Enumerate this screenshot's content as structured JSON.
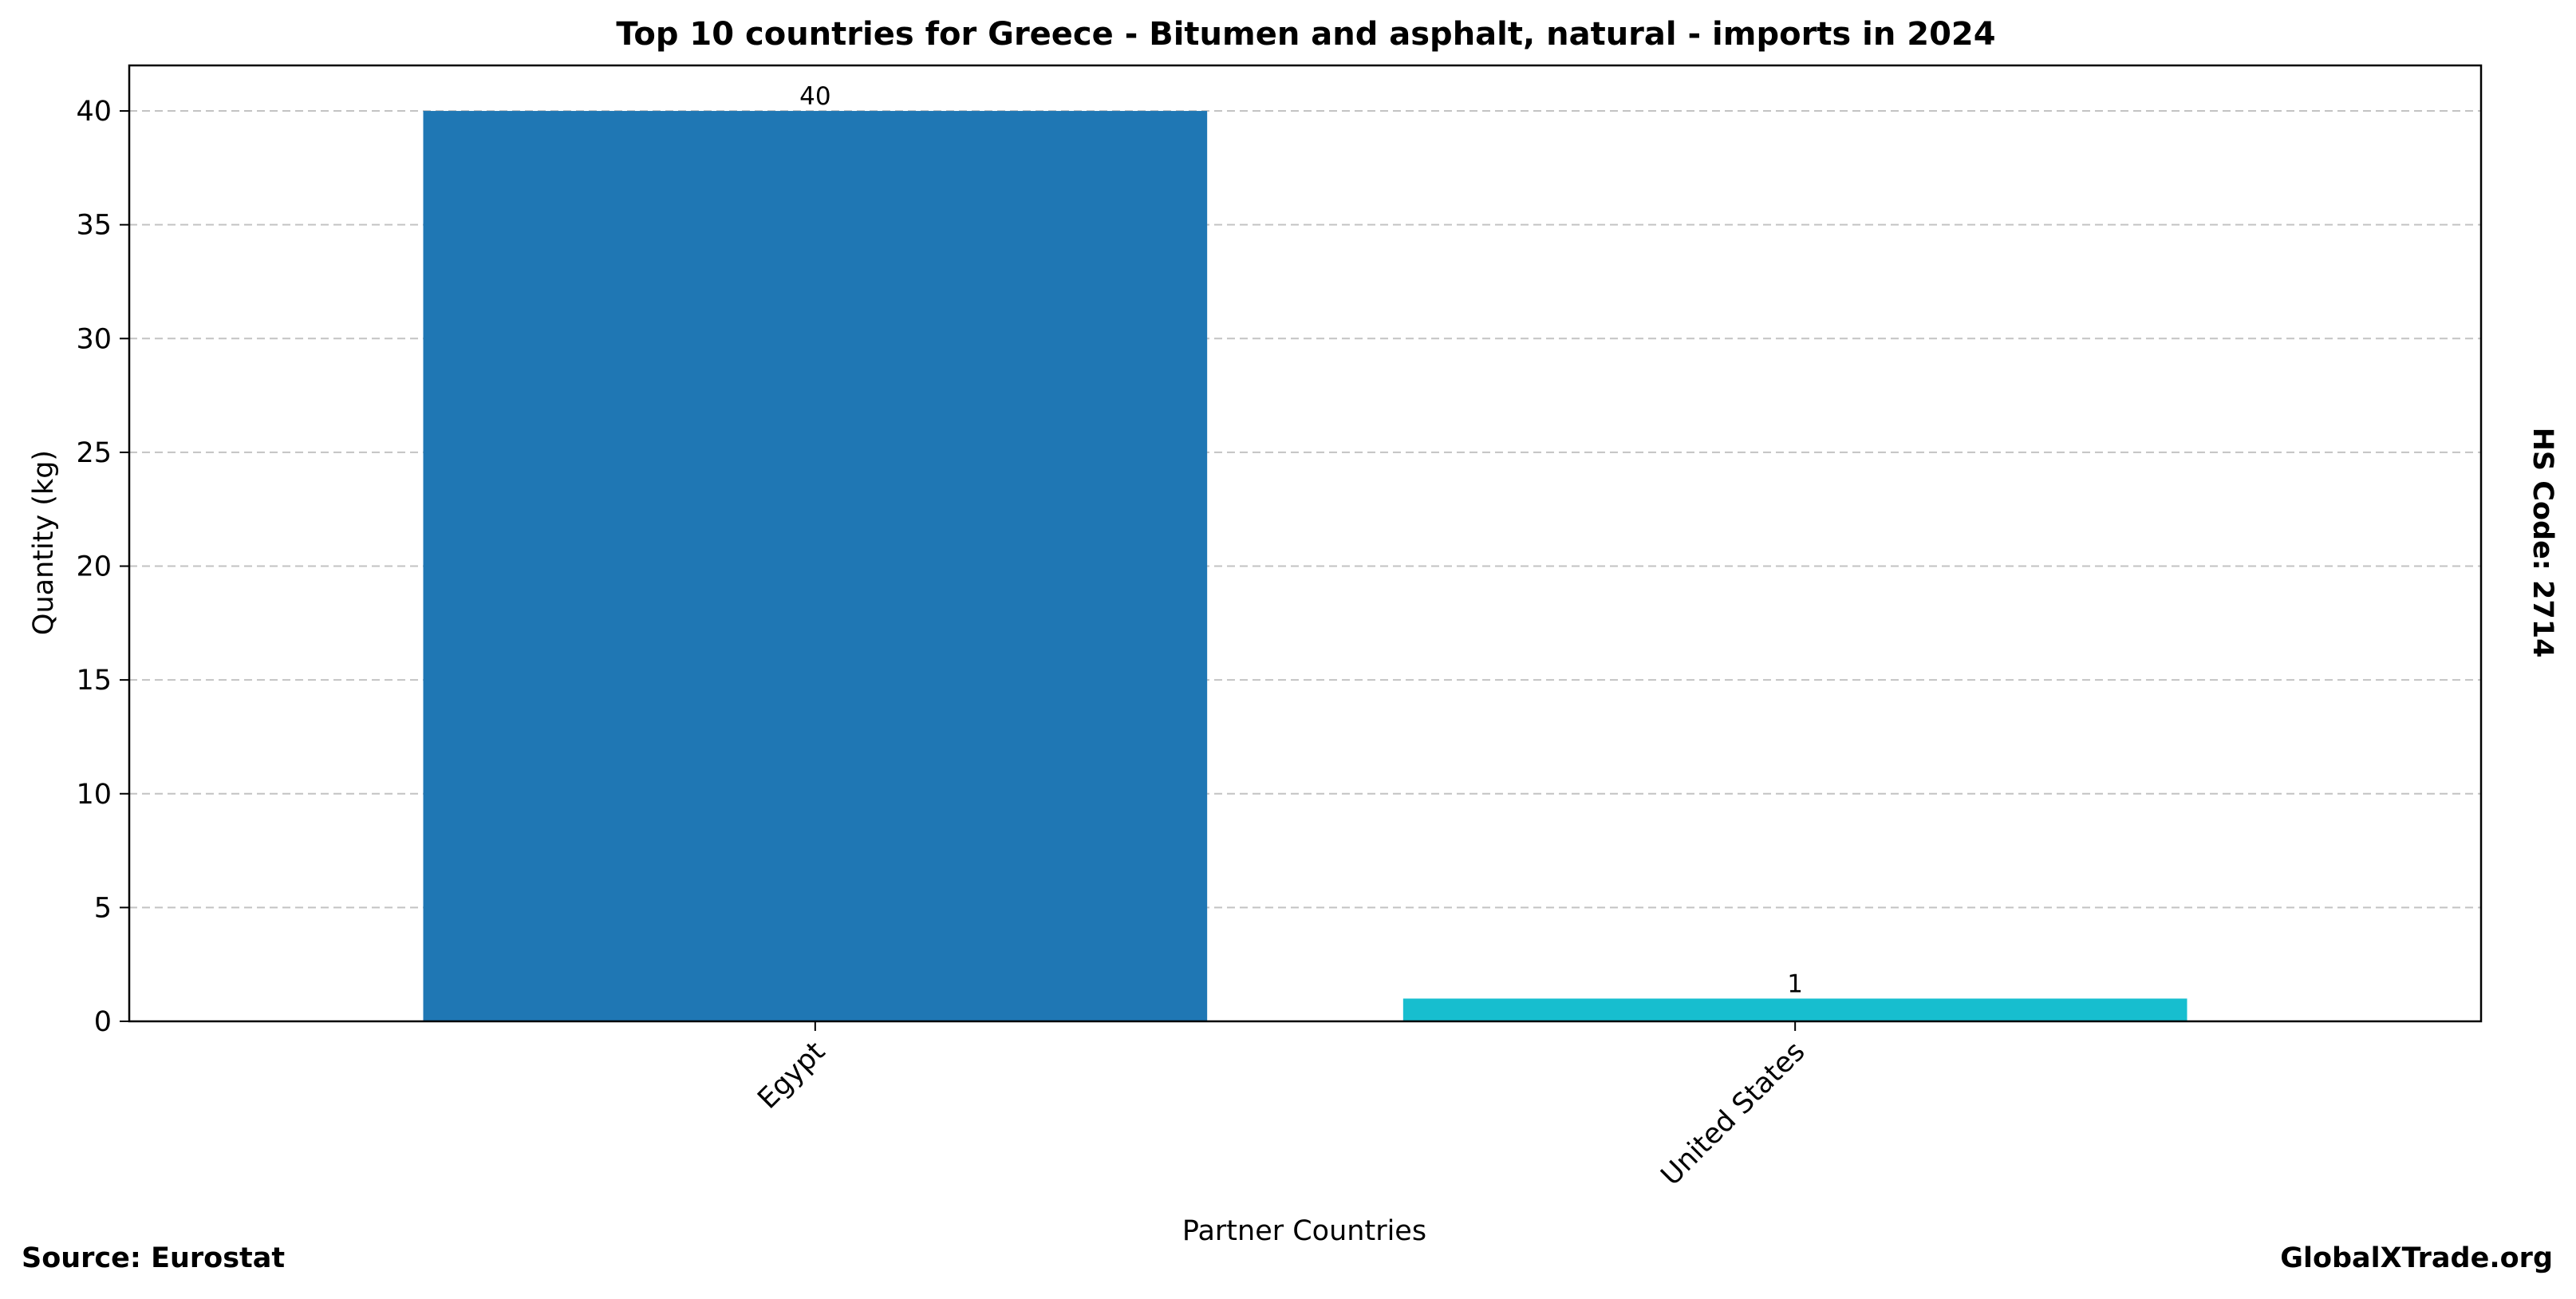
{
  "chart_data": {
    "type": "bar",
    "title": "Top 10 countries for Greece - Bitumen and asphalt, natural - imports in 2024",
    "xlabel": "Partner Countries",
    "ylabel": "Quantity (kg)",
    "categories": [
      "Egypt",
      "United States"
    ],
    "values": [
      40,
      1
    ],
    "data_labels": [
      "40",
      "1"
    ],
    "colors": [
      "#1f77b4",
      "#17becf"
    ],
    "ylim": [
      0,
      42
    ],
    "yticks": [
      0,
      5,
      10,
      15,
      20,
      25,
      30,
      35,
      40
    ],
    "ytick_labels": [
      "0",
      "5",
      "10",
      "15",
      "20",
      "25",
      "30",
      "35",
      "40"
    ],
    "grid": "y dashed",
    "side_label": "HS Code: 2714",
    "source": "Source: Eurostat",
    "watermark": "GlobalXTrade.org"
  }
}
